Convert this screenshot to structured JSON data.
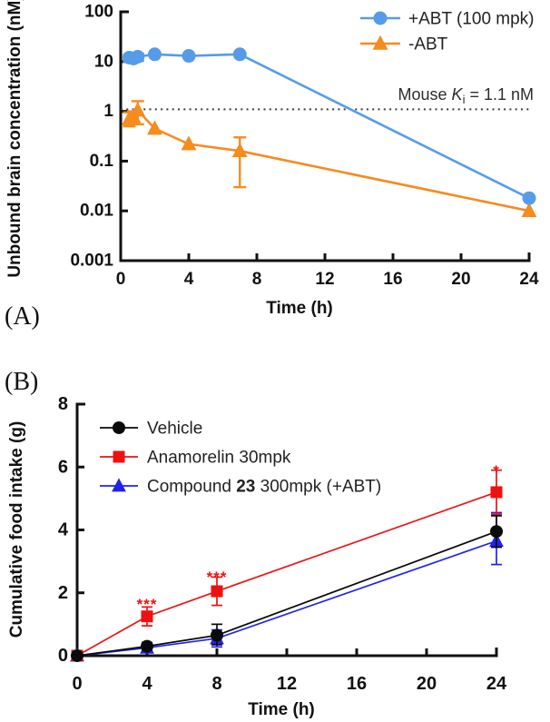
{
  "figure": {
    "background": "#ffffff",
    "panel_a_label": "(A)",
    "panel_b_label": "(B)"
  },
  "colors": {
    "axis": "#111111",
    "reference_line": "#3c3c3c",
    "significance": "#ee1111"
  },
  "chart_data": [
    {
      "id": "chartA",
      "type": "line",
      "panel": "A",
      "title": "",
      "xlabel": "Time (h)",
      "ylabel": "Unbound brain concentration (nM)",
      "xlim": [
        0,
        24
      ],
      "x_ticks": [
        0,
        4,
        8,
        12,
        16,
        20,
        24
      ],
      "x_tick_labels": [
        "0",
        "4",
        "8",
        "12",
        "16",
        "20",
        "24"
      ],
      "yscale": "log",
      "ylim": [
        0.001,
        100
      ],
      "y_ticks": [
        100,
        10,
        1,
        0.1,
        0.01,
        0.001
      ],
      "y_tick_labels": [
        "100",
        "10",
        "1",
        "0.1",
        "0.01",
        "0.001"
      ],
      "grid": false,
      "legend_position": "top-right",
      "reference_line": {
        "y": 1.1,
        "style": "dotted",
        "label_text": "Mouse Ki = 1.1 nM",
        "label_parts": [
          {
            "t": "Mouse "
          },
          {
            "t": "K",
            "italic": true
          },
          {
            "t": "i",
            "sub": true
          },
          {
            "t": " = 1.1 nM"
          }
        ]
      },
      "series": [
        {
          "name": "+ABT (100 mpk)",
          "color": "#569be8",
          "marker": "circle",
          "zorder": 2,
          "x": [
            0.5,
            0.75,
            1,
            2,
            4,
            7,
            24
          ],
          "y": [
            12,
            11.5,
            12.5,
            14,
            13,
            14,
            0.018
          ],
          "y_err_low": [
            10,
            10,
            10.3,
            null,
            null,
            null,
            null
          ],
          "y_err_high": [
            13.5,
            13,
            14.5,
            null,
            null,
            null,
            null
          ]
        },
        {
          "name": "-ABT",
          "color": "#f68b1e",
          "marker": "triangle",
          "zorder": 1,
          "x": [
            0.5,
            0.75,
            1,
            2,
            4,
            7,
            24
          ],
          "y": [
            0.7,
            0.78,
            1.05,
            0.45,
            0.22,
            0.16,
            0.01
          ],
          "y_err_low": [
            0.5,
            0.55,
            0.55,
            null,
            null,
            0.03,
            null
          ],
          "y_err_high": [
            0.95,
            1.0,
            1.6,
            null,
            null,
            0.3,
            null
          ]
        }
      ],
      "annotations": []
    },
    {
      "id": "chartB",
      "type": "line",
      "panel": "B",
      "title": "",
      "xlabel": "Time (h)",
      "ylabel": "Cumulative food intake (g)",
      "xlim": [
        0,
        24
      ],
      "x_ticks": [
        0,
        4,
        8,
        12,
        16,
        20,
        24
      ],
      "x_tick_labels": [
        "0",
        "4",
        "8",
        "12",
        "16",
        "20",
        "24"
      ],
      "yscale": "linear",
      "ylim": [
        0,
        8
      ],
      "y_ticks": [
        0,
        2,
        4,
        6,
        8
      ],
      "y_tick_labels": [
        "0",
        "2",
        "4",
        "6",
        "8"
      ],
      "grid": false,
      "legend_position": "top-left",
      "series": [
        {
          "name": "Vehicle",
          "color": "#0a0a0a",
          "marker": "circle",
          "zorder": 3,
          "x": [
            0,
            4,
            8,
            24
          ],
          "y": [
            0,
            0.3,
            0.65,
            3.95
          ],
          "y_err_low": [
            null,
            0.18,
            0.35,
            3.45
          ],
          "y_err_high": [
            null,
            0.42,
            1.0,
            4.45
          ]
        },
        {
          "name": "Anamorelin 30mpk",
          "color": "#ee1111",
          "marker": "square",
          "zorder": 2,
          "x": [
            0,
            4,
            8,
            24
          ],
          "y": [
            0,
            1.25,
            2.05,
            5.2
          ],
          "y_err_low": [
            null,
            0.95,
            1.6,
            4.5
          ],
          "y_err_high": [
            null,
            1.55,
            2.5,
            5.9
          ]
        },
        {
          "name": "Compound 23 300mpk (+ABT)",
          "name_parts": [
            {
              "t": "Compound "
            },
            {
              "t": "23",
              "bold": true
            },
            {
              "t": " 300mpk (+ABT)"
            }
          ],
          "color": "#2121ee",
          "marker": "triangle",
          "zorder": 1,
          "x": [
            0,
            4,
            8,
            24
          ],
          "y": [
            0,
            0.25,
            0.55,
            3.65
          ],
          "y_err_low": [
            null,
            0.12,
            0.28,
            2.9
          ],
          "y_err_high": [
            null,
            0.38,
            0.82,
            4.55
          ]
        }
      ],
      "annotations": [
        {
          "text": "***",
          "x": 4,
          "y": 1.85,
          "color": "#ee1111"
        },
        {
          "text": "***",
          "x": 8,
          "y": 2.72,
          "color": "#ee1111"
        },
        {
          "text": "*",
          "x": 24,
          "y": 6.1,
          "color": "#ee1111"
        }
      ]
    }
  ]
}
